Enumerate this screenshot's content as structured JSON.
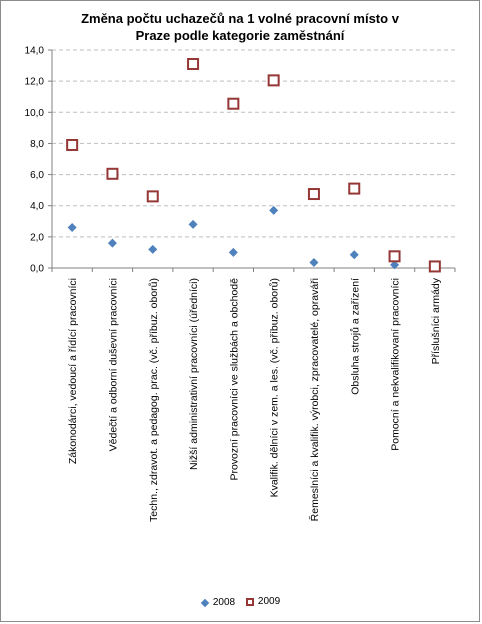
{
  "chart_data": {
    "type": "scatter",
    "title_lines": [
      "Změna počtu uchazečů na 1 volné pracovní místo v",
      "Praze podle kategorie zaměstnání"
    ],
    "categories": [
      "Zákonodárci, vedoucí a řídící pracovníci",
      "Vědečtí a odborní duševní pracovníci",
      "Techn., zdravot. a pedagog. prac. (vč. příbuz. oborů)",
      "Nižší administrativní pracovníci (úředníci)",
      "Provozní pracovníci ve službách a obchodě",
      "Kvalifik. dělníci v zem. a les. (vč. příbuz. oborů)",
      "Řemeslníci a kvalifik. výrobci, zpracovatelé, opraváři",
      "Obsluha strojů a zařízení",
      "Pomocní a nekvalifikovaní pracovníci",
      "Příslušníci armády"
    ],
    "series": [
      {
        "name": "2008",
        "color": "#4f81bd",
        "marker": "diamond",
        "values": [
          2.6,
          1.6,
          1.2,
          2.8,
          1.0,
          3.7,
          0.35,
          0.85,
          0.2,
          0.05
        ]
      },
      {
        "name": "2009",
        "color": "#953735",
        "marker": "square-open",
        "values": [
          7.9,
          6.05,
          4.6,
          13.1,
          10.55,
          12.05,
          4.75,
          5.1,
          0.75,
          0.1
        ]
      }
    ],
    "ylim": [
      0,
      14
    ],
    "yticks": [
      "0,0",
      "2,0",
      "4,0",
      "6,0",
      "8,0",
      "10,0",
      "12,0",
      "14,0"
    ],
    "grid": true,
    "legend_position": "bottom"
  }
}
